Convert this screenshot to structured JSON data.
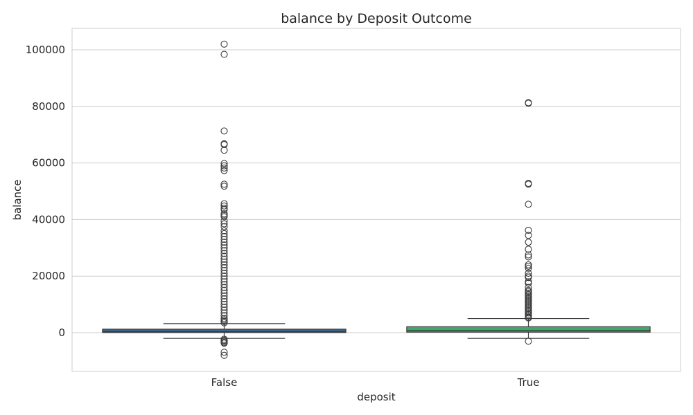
{
  "chart_data": {
    "type": "box",
    "title": "balance by Deposit Outcome",
    "xlabel": "deposit",
    "ylabel": "balance",
    "categories": [
      "False",
      "True"
    ],
    "ylim": [
      -13500,
      107500
    ],
    "yticks": [
      0,
      20000,
      40000,
      60000,
      80000,
      100000
    ],
    "grid": true,
    "legend": "none",
    "boxes": [
      {
        "category": "False",
        "color": "#3b6a91",
        "whisker_low": -2000,
        "q1": 60,
        "median": 400,
        "q3": 1250,
        "whisker_high": 3200,
        "fliers": [
          102000,
          98400,
          71300,
          66800,
          66500,
          64500,
          59800,
          59000,
          58200,
          57300,
          52500,
          51800,
          45600,
          44800,
          44000,
          43500,
          42000,
          41500,
          41000,
          39500,
          38500,
          37500,
          36000,
          35000,
          34000,
          33000,
          32000,
          31000,
          30000,
          29000,
          28000,
          27000,
          26000,
          25000,
          24000,
          23000,
          22000,
          21000,
          20000,
          19000,
          18000,
          17000,
          16000,
          15000,
          14000,
          13000,
          12000,
          11000,
          10000,
          9000,
          8000,
          7000,
          6000,
          5000,
          4500,
          4000,
          3500,
          -2300,
          -2700,
          -3000,
          -3400,
          -3700,
          -6900,
          -8000
        ]
      },
      {
        "category": "True",
        "color": "#3daa6a",
        "whisker_low": -2000,
        "q1": 200,
        "median": 730,
        "q3": 2100,
        "whisker_high": 5000,
        "fliers": [
          81300,
          81100,
          52800,
          52500,
          45400,
          36200,
          34400,
          32000,
          29500,
          27500,
          26800,
          24000,
          23500,
          22800,
          21000,
          20000,
          19500,
          18000,
          17500,
          16000,
          15000,
          14500,
          14000,
          13500,
          13000,
          12500,
          12000,
          11500,
          11000,
          10500,
          10000,
          9500,
          9000,
          8500,
          8000,
          7500,
          7000,
          6500,
          6000,
          5500,
          5200,
          -3000
        ]
      }
    ]
  }
}
